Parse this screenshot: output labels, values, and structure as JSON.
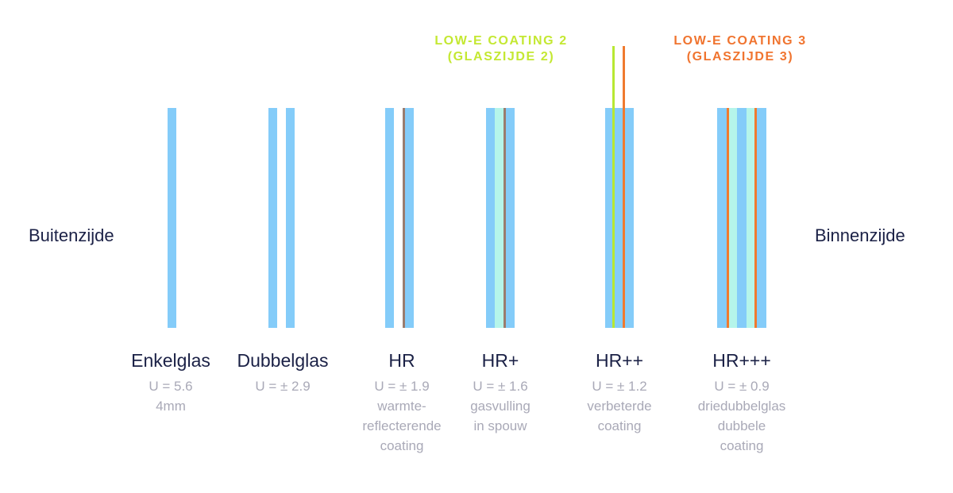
{
  "sides": {
    "outside": "Buitenzijde",
    "inside": "Binnenzijde"
  },
  "coatings": {
    "coating2": {
      "line1": "LOW-E COATING 2",
      "line2": "(GLASZIJDE 2)",
      "color": "#c4e832"
    },
    "coating3": {
      "line1": "LOW-E COATING 3",
      "line2": "(GLASZIJDE 3)",
      "color": "#f0742f"
    }
  },
  "colors": {
    "glass": "#84ccf9",
    "gas_filling": "#b5f5ea",
    "reflective_coating": "#9a7c6e",
    "text_dark": "#1b2146",
    "text_muted": "#a9a9b7"
  },
  "glazing_types": [
    {
      "name": "Enkelglas",
      "u_value": "U = 5.6",
      "details": [
        "4mm"
      ]
    },
    {
      "name": "Dubbelglas",
      "u_value": "U = ± 2.9",
      "details": []
    },
    {
      "name": "HR",
      "u_value": "U = ± 1.9",
      "details": [
        "warmte-",
        "reflecterende",
        "coating"
      ]
    },
    {
      "name": "HR+",
      "u_value": "U = ± 1.6",
      "details": [
        "gasvulling",
        "in spouw"
      ]
    },
    {
      "name": "HR++",
      "u_value": "U = ± 1.2",
      "details": [
        "verbeterde",
        "coating"
      ]
    },
    {
      "name": "HR+++",
      "u_value": "U = ± 0.9",
      "details": [
        "driedubbelglas",
        "dubbele",
        "coating"
      ]
    }
  ]
}
